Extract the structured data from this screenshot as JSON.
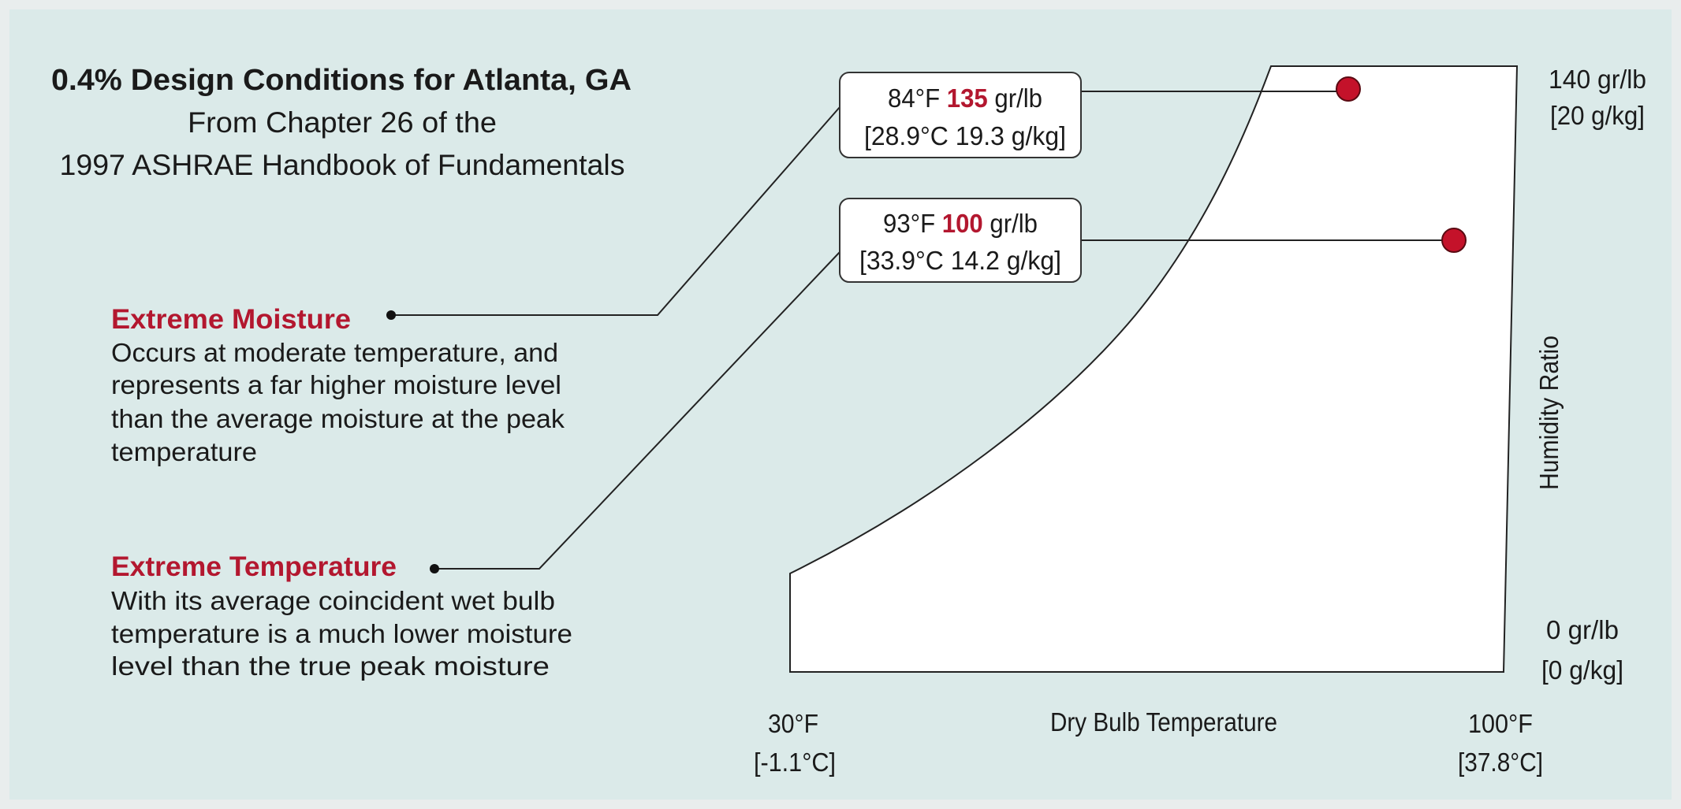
{
  "title": "0.4% Design Conditions for Atlanta, GA",
  "subtitle": [
    "From Chapter 26 of the",
    "1997 ASHRAE Handbook of Fundamentals"
  ],
  "callouts": [
    {
      "heading": "Extreme Moisture",
      "body": [
        "Occurs at moderate temperature, and",
        "represents a far higher moisture level",
        "than the average moisture at the peak",
        "temperature"
      ]
    },
    {
      "heading": "Extreme Temperature",
      "body": [
        "With its average coincident wet bulb",
        "temperature is a much lower moisture",
        "level than the true peak moisture"
      ]
    }
  ],
  "boxes": [
    {
      "temp": "84°F",
      "moisture": "135",
      "unit": "gr/lb",
      "metric": "[28.9°C  19.3 g/kg]"
    },
    {
      "temp": "93°F",
      "moisture": "100",
      "unit": "gr/lb",
      "metric": "[33.9°C  14.2 g/kg]"
    }
  ],
  "x_axis": {
    "label": "Dry Bulb Temperature",
    "min": [
      "30°F",
      "[-1.1°C]"
    ],
    "max": [
      "100°F",
      "[37.8°C]"
    ]
  },
  "y_axis": {
    "label": "Humidity Ratio",
    "max": [
      "140 gr/lb",
      "[20 g/kg]"
    ],
    "min": [
      "0 gr/lb",
      "[0 g/kg]"
    ]
  }
}
